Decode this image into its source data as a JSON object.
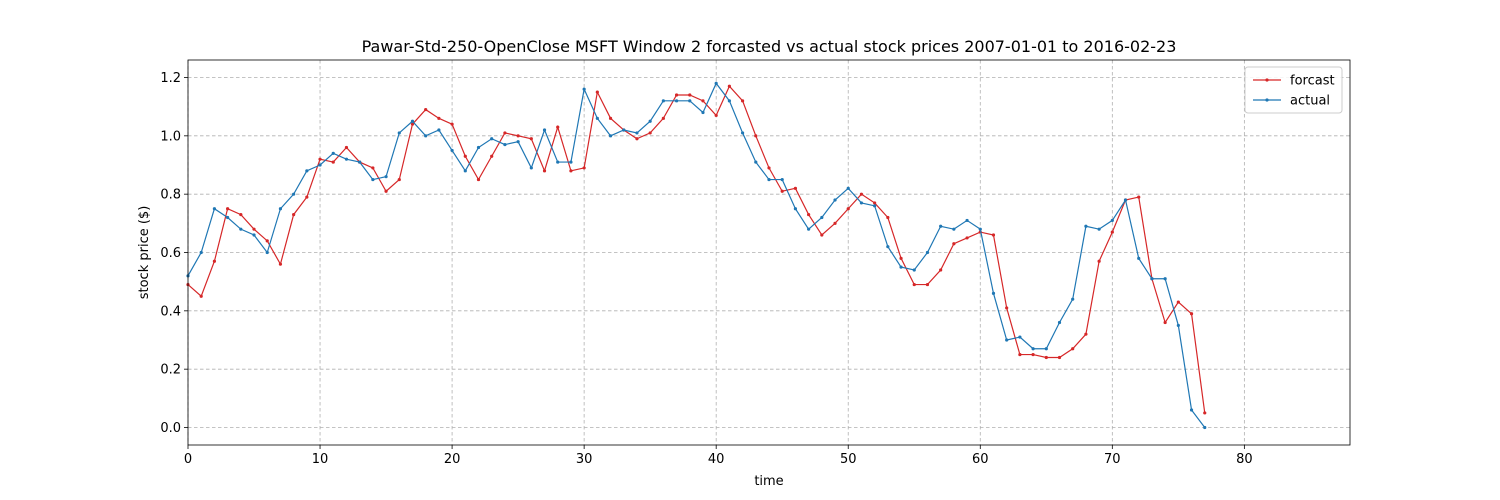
{
  "chart_data": {
    "type": "line",
    "title": "Pawar-Std-250-OpenClose MSFT Window 2 forcasted vs actual stock prices 2007-01-01 to 2016-02-23",
    "xlabel": "time",
    "ylabel": "stock price ($)",
    "xlim": [
      0,
      88
    ],
    "ylim": [
      -0.06,
      1.26
    ],
    "xticks": [
      0,
      10,
      20,
      30,
      40,
      50,
      60,
      70,
      80
    ],
    "yticks": [
      0.0,
      0.2,
      0.4,
      0.6,
      0.8,
      1.0,
      1.2
    ],
    "grid": true,
    "legend_position": "top-right",
    "series": [
      {
        "name": "forcast",
        "color": "#d62728",
        "values": [
          0.49,
          0.45,
          0.57,
          0.75,
          0.73,
          0.68,
          0.64,
          0.56,
          0.73,
          0.79,
          0.92,
          0.91,
          0.96,
          0.91,
          0.89,
          0.81,
          0.85,
          1.04,
          1.09,
          1.06,
          1.04,
          0.93,
          0.85,
          0.93,
          1.01,
          1.0,
          0.99,
          0.88,
          1.03,
          0.88,
          0.89,
          1.15,
          1.06,
          1.02,
          0.99,
          1.01,
          1.06,
          1.14,
          1.14,
          1.12,
          1.07,
          1.17,
          1.12,
          1.0,
          0.89,
          0.81,
          0.82,
          0.73,
          0.66,
          0.7,
          0.75,
          0.8,
          0.77,
          0.72,
          0.58,
          0.49,
          0.49,
          0.54,
          0.63,
          0.65,
          0.67,
          0.66,
          0.41,
          0.25,
          0.25,
          0.24,
          0.24,
          0.27,
          0.32,
          0.57,
          0.67,
          0.78,
          0.79,
          0.51,
          0.36,
          0.43,
          0.39,
          0.05
        ]
      },
      {
        "name": "actual",
        "color": "#1f77b4",
        "values": [
          0.52,
          0.6,
          0.75,
          0.72,
          0.68,
          0.66,
          0.6,
          0.75,
          0.8,
          0.88,
          0.9,
          0.94,
          0.92,
          0.91,
          0.85,
          0.86,
          1.01,
          1.05,
          1.0,
          1.02,
          0.95,
          0.88,
          0.96,
          0.99,
          0.97,
          0.98,
          0.89,
          1.02,
          0.91,
          0.91,
          1.16,
          1.06,
          1.0,
          1.02,
          1.01,
          1.05,
          1.12,
          1.12,
          1.12,
          1.08,
          1.18,
          1.12,
          1.01,
          0.91,
          0.85,
          0.85,
          0.75,
          0.68,
          0.72,
          0.78,
          0.82,
          0.77,
          0.76,
          0.62,
          0.55,
          0.54,
          0.6,
          0.69,
          0.68,
          0.71,
          0.68,
          0.46,
          0.3,
          0.31,
          0.27,
          0.27,
          0.36,
          0.44,
          0.69,
          0.68,
          0.71,
          0.78,
          0.58,
          0.51,
          0.51,
          0.35,
          0.06,
          0.0
        ]
      }
    ]
  }
}
